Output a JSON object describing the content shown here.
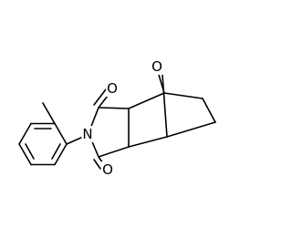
{
  "atoms": [
    {
      "label": "O"
    },
    {
      "label": "O"
    },
    {
      "label": "N"
    },
    {
      "label": "O"
    }
  ]
}
